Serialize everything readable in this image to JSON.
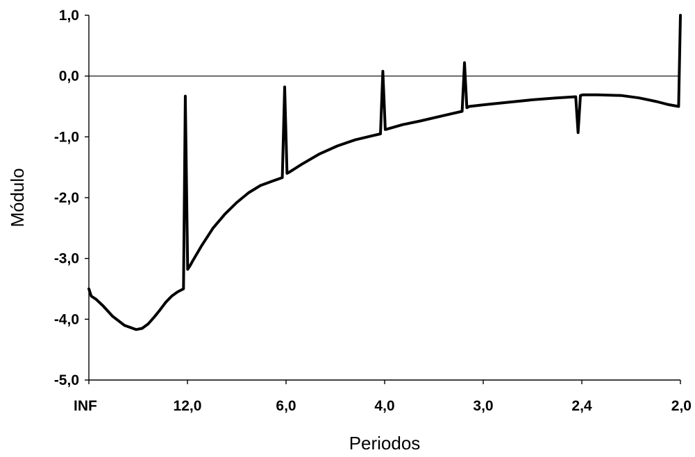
{
  "chart_data": {
    "type": "line",
    "title": "",
    "xlabel": "Periodos",
    "ylabel": "Módulo",
    "ylim": [
      -5,
      1
    ],
    "yticks": [
      1.0,
      0.0,
      -1.0,
      -2.0,
      -3.0,
      -4.0,
      -5.0
    ],
    "ytick_labels": [
      "1,0",
      "0,0",
      "-1,0",
      "-2,0",
      "-3,0",
      "-4,0",
      "-5,0"
    ],
    "xlim": [
      0,
      0.5
    ],
    "xticks": [
      0,
      0.08333,
      0.16667,
      0.25,
      0.33333,
      0.41667,
      0.5
    ],
    "xtick_labels": [
      "INF",
      "12,0",
      "6,0",
      "4,0",
      "3,0",
      "2,4",
      "2,0"
    ],
    "grid": "none",
    "legend": "none",
    "reference_line_y": 0,
    "line_color": "#000000",
    "series": [
      {
        "x": [
          0.0,
          0.002,
          0.006,
          0.012,
          0.02,
          0.03,
          0.04,
          0.045,
          0.05,
          0.055,
          0.06,
          0.065,
          0.07,
          0.075,
          0.08,
          0.0815,
          0.0835,
          0.0855,
          0.0875,
          0.095,
          0.105,
          0.115,
          0.125,
          0.135,
          0.145,
          0.155,
          0.1635,
          0.1655,
          0.1675,
          0.1695,
          0.18,
          0.195,
          0.21,
          0.225,
          0.24,
          0.2465,
          0.2485,
          0.2505,
          0.2525,
          0.265,
          0.28,
          0.3,
          0.3155,
          0.3175,
          0.3195,
          0.3215,
          0.335,
          0.355,
          0.375,
          0.395,
          0.4115,
          0.4135,
          0.4155,
          0.4175,
          0.43,
          0.45,
          0.465,
          0.48,
          0.49,
          0.4985,
          0.5
        ],
        "y": [
          -3.5,
          -3.62,
          -3.67,
          -3.78,
          -3.95,
          -4.1,
          -4.17,
          -4.15,
          -4.08,
          -3.97,
          -3.85,
          -3.72,
          -3.62,
          -3.55,
          -3.5,
          -0.33,
          -3.18,
          -3.12,
          -3.05,
          -2.8,
          -2.5,
          -2.27,
          -2.08,
          -1.92,
          -1.8,
          -1.73,
          -1.67,
          -0.18,
          -1.6,
          -1.58,
          -1.45,
          -1.28,
          -1.15,
          -1.05,
          -0.98,
          -0.95,
          0.08,
          -0.88,
          -0.87,
          -0.8,
          -0.74,
          -0.65,
          -0.58,
          0.22,
          -0.52,
          -0.5,
          -0.47,
          -0.43,
          -0.39,
          -0.36,
          -0.34,
          -0.93,
          -0.32,
          -0.31,
          -0.31,
          -0.32,
          -0.36,
          -0.42,
          -0.47,
          -0.5,
          1.0
        ]
      }
    ]
  }
}
